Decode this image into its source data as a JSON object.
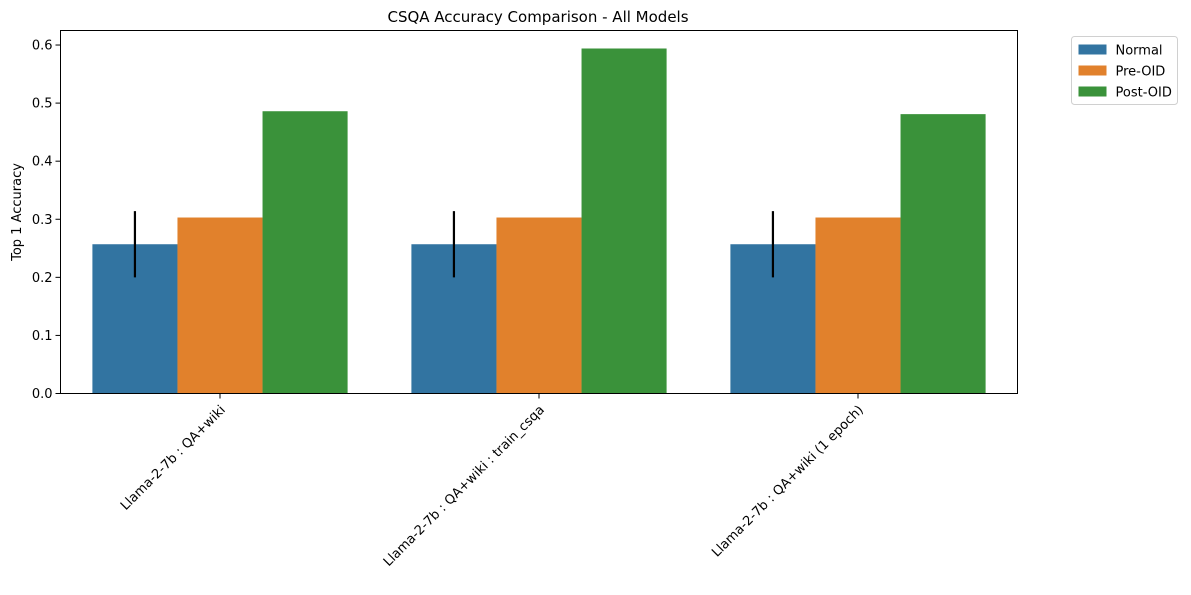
{
  "colors": {
    "normal": "#3274a1",
    "pre_oid": "#e1812c",
    "post_oid": "#3a923a",
    "error_bar": "#000000"
  },
  "chart_data": {
    "type": "bar",
    "title": "CSQA Accuracy Comparison - All Models",
    "xlabel": "",
    "ylabel": "Top 1 Accuracy",
    "ylim": [
      0,
      0.625
    ],
    "yticks": [
      "0.0",
      "0.1",
      "0.2",
      "0.3",
      "0.4",
      "0.5",
      "0.6"
    ],
    "grid": false,
    "legend_position": "outside-top-right",
    "categories": [
      "Llama-2-7b : QA+wiki",
      "Llama-2-7b : QA+wiki : train_csqa",
      "Llama-2-7b : QA+wiki (1 epoch)"
    ],
    "series": [
      {
        "name": "Normal",
        "color": "#3274a1",
        "values": [
          0.257,
          0.257,
          0.257
        ],
        "error_low": [
          0.2,
          0.2,
          0.2
        ],
        "error_high": [
          0.314,
          0.314,
          0.314
        ]
      },
      {
        "name": "Pre-OID",
        "color": "#e1812c",
        "values": [
          0.303,
          0.303,
          0.303
        ]
      },
      {
        "name": "Post-OID",
        "color": "#3a923a",
        "values": [
          0.486,
          0.594,
          0.481
        ]
      }
    ]
  }
}
